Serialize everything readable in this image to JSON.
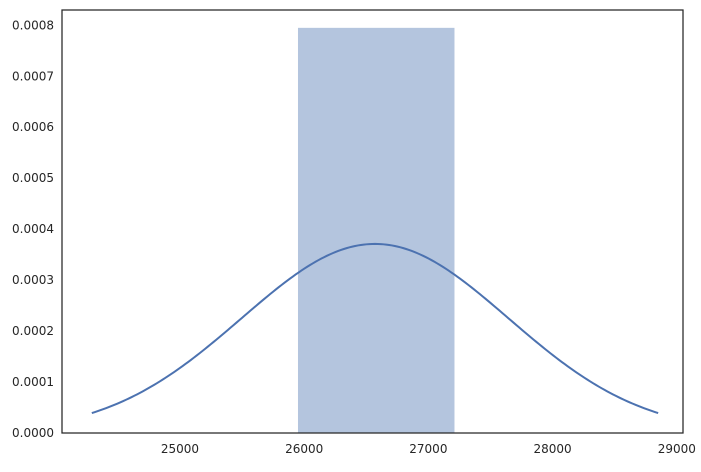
{
  "chart_data": {
    "type": "histogram_with_kde",
    "title": "",
    "xlabel": "",
    "ylabel": "",
    "xlim": [
      24050,
      29050
    ],
    "ylim": [
      0,
      0.00083
    ],
    "grid": false,
    "x_ticks": [
      25000,
      26000,
      27000,
      28000,
      29000
    ],
    "x_tick_labels": [
      "25000",
      "26000",
      "27000",
      "28000",
      "29000"
    ],
    "y_ticks": [
      0.0,
      0.0001,
      0.0002,
      0.0003,
      0.0004,
      0.0005,
      0.0006,
      0.0007,
      0.0008
    ],
    "y_tick_labels": [
      "0.0000",
      "0.0001",
      "0.0002",
      "0.0003",
      "0.0004",
      "0.0005",
      "0.0006",
      "0.0007",
      "0.0008"
    ],
    "bars": [
      {
        "x_start": 25950,
        "x_end": 27210,
        "density": 0.000795
      }
    ],
    "kde": {
      "mean": 26570,
      "std": 1075,
      "x_min": 24290,
      "x_max": 28850,
      "peak_density": 0.000371
    },
    "colors": {
      "bar_fill": "#b4c5de",
      "kde_line": "#4c72b0",
      "axes_edge": "#262626",
      "background": "#ffffff"
    }
  }
}
